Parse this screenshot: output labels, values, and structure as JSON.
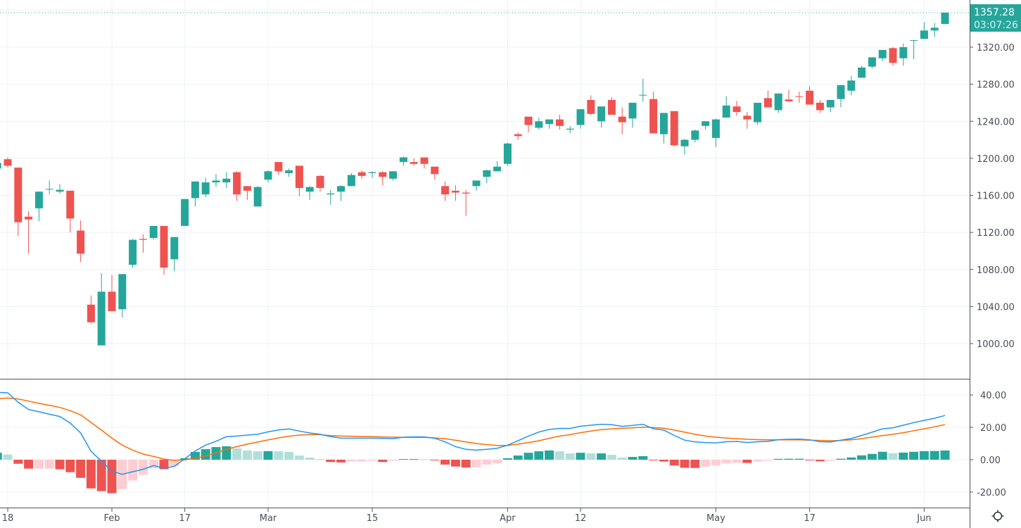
{
  "chart_data": [
    {
      "type": "candlestick",
      "pane": "price",
      "colors": {
        "up": "#26a69a",
        "down": "#ef5350",
        "grid": "#edf1f5",
        "last_price_line": "#26a69a"
      },
      "x_tick_labels": [
        {
          "candle": 1,
          "label": "18"
        },
        {
          "candle": 11,
          "label": "Feb"
        },
        {
          "candle": 18,
          "label": "17"
        },
        {
          "candle": 26,
          "label": "Mar"
        },
        {
          "candle": 36,
          "label": "15"
        },
        {
          "candle": 49,
          "label": "Apr"
        },
        {
          "candle": 56,
          "label": "12"
        },
        {
          "candle": 69,
          "label": "May"
        },
        {
          "candle": 78,
          "label": "17"
        },
        {
          "candle": 89,
          "label": "Jun"
        }
      ],
      "y_ticks": [
        "1000.00",
        "1040.00",
        "1080.00",
        "1120.00",
        "1160.00",
        "1200.00",
        "1240.00",
        "1280.00",
        "1320.00"
      ],
      "ylim": [
        963,
        1372
      ],
      "grid": true,
      "last_price": "1357.28",
      "countdown": "03:07:26",
      "ohlc_fields": [
        "open",
        "high",
        "low",
        "close"
      ],
      "candles": [
        [
          1189,
          1195,
          1188,
          1195
        ],
        [
          1199,
          1201,
          1190,
          1192
        ],
        [
          1190,
          1190,
          1116,
          1131
        ],
        [
          1137,
          1143,
          1097,
          1134
        ],
        [
          1146,
          1164,
          1132,
          1164
        ],
        [
          1166.5,
          1176,
          1161,
          1167
        ],
        [
          1164,
          1172,
          1162,
          1166
        ],
        [
          1165,
          1165,
          1120,
          1135
        ],
        [
          1122,
          1133,
          1088,
          1097
        ],
        [
          1042,
          1052,
          1022,
          1023
        ],
        [
          998,
          1076,
          998,
          1056
        ],
        [
          1056,
          1074,
          1035,
          1035
        ],
        [
          1037,
          1075,
          1028,
          1075
        ],
        [
          1085,
          1113,
          1082,
          1112
        ],
        [
          1113,
          1118,
          1098,
          1112
        ],
        [
          1114,
          1127,
          1112,
          1127
        ],
        [
          1127,
          1127,
          1074,
          1082
        ],
        [
          1091,
          1115,
          1078,
          1115
        ],
        [
          1127,
          1156,
          1127,
          1156
        ],
        [
          1157,
          1175,
          1148,
          1175
        ],
        [
          1161,
          1179,
          1158,
          1174
        ],
        [
          1174,
          1183,
          1169,
          1176
        ],
        [
          1174,
          1185,
          1168,
          1178
        ],
        [
          1185,
          1186,
          1154,
          1161
        ],
        [
          1170,
          1170,
          1155,
          1165
        ],
        [
          1148,
          1170,
          1148,
          1169
        ],
        [
          1177,
          1187,
          1174,
          1186
        ],
        [
          1196,
          1196,
          1182,
          1186
        ],
        [
          1184,
          1189,
          1180,
          1187
        ],
        [
          1192,
          1192,
          1159,
          1168
        ],
        [
          1164,
          1170,
          1155,
          1169
        ],
        [
          1181,
          1182,
          1164,
          1168
        ],
        [
          1161,
          1166,
          1150,
          1162
        ],
        [
          1164,
          1171,
          1154,
          1170
        ],
        [
          1170,
          1184,
          1170,
          1182
        ],
        [
          1185,
          1187,
          1178,
          1181
        ],
        [
          1184,
          1186,
          1179,
          1185
        ],
        [
          1185,
          1186,
          1171,
          1180
        ],
        [
          1178,
          1186,
          1176,
          1186
        ],
        [
          1196,
          1202,
          1192,
          1201
        ],
        [
          1196,
          1200,
          1192,
          1194
        ],
        [
          1201,
          1201,
          1189,
          1194
        ],
        [
          1191,
          1191,
          1177,
          1183
        ],
        [
          1170,
          1175,
          1154,
          1161
        ],
        [
          1165,
          1171,
          1154,
          1163
        ],
        [
          1163,
          1166,
          1138,
          1162
        ],
        [
          1170,
          1176,
          1165,
          1176
        ],
        [
          1180,
          1188,
          1173,
          1187
        ],
        [
          1186,
          1197,
          1186,
          1191
        ],
        [
          1194,
          1217,
          1192,
          1216
        ],
        [
          1226,
          1228,
          1220,
          1224
        ],
        [
          1245,
          1245,
          1228,
          1236
        ],
        [
          1233,
          1244,
          1231,
          1240
        ],
        [
          1237,
          1242,
          1232,
          1242
        ],
        [
          1242,
          1247,
          1231,
          1235
        ],
        [
          1231,
          1235,
          1227,
          1232
        ],
        [
          1236,
          1253,
          1232,
          1253
        ],
        [
          1263,
          1268,
          1247,
          1248
        ],
        [
          1240,
          1256,
          1233,
          1256
        ],
        [
          1263,
          1266,
          1247,
          1247
        ],
        [
          1245,
          1255,
          1226,
          1239
        ],
        [
          1243,
          1260,
          1233,
          1260
        ],
        [
          1268,
          1286,
          1261,
          1268.5
        ],
        [
          1264,
          1272,
          1227,
          1227
        ],
        [
          1226,
          1249,
          1216,
          1249
        ],
        [
          1251,
          1251,
          1213,
          1214
        ],
        [
          1213,
          1221,
          1204,
          1220
        ],
        [
          1220,
          1231,
          1217,
          1230
        ],
        [
          1235,
          1240,
          1231,
          1240
        ],
        [
          1222,
          1243,
          1212,
          1242
        ],
        [
          1244,
          1267,
          1244,
          1257
        ],
        [
          1256,
          1262,
          1246,
          1250
        ],
        [
          1246,
          1250,
          1232,
          1242
        ],
        [
          1239,
          1260,
          1236,
          1260
        ],
        [
          1265,
          1273,
          1255,
          1255
        ],
        [
          1252,
          1270,
          1249,
          1270
        ],
        [
          1263.5,
          1274,
          1261,
          1261.5
        ],
        [
          1267,
          1272,
          1260,
          1266.5
        ],
        [
          1273,
          1278,
          1258,
          1258
        ],
        [
          1260,
          1263,
          1249,
          1252
        ],
        [
          1255,
          1263,
          1250,
          1263
        ],
        [
          1264,
          1279,
          1255,
          1279
        ],
        [
          1273,
          1289,
          1268,
          1284
        ],
        [
          1287,
          1300,
          1287,
          1298
        ],
        [
          1299,
          1309,
          1297,
          1309
        ],
        [
          1308,
          1317,
          1305,
          1317
        ],
        [
          1319,
          1320,
          1300,
          1303
        ],
        [
          1308,
          1324,
          1300,
          1320
        ],
        [
          1327,
          1328,
          1307,
          1327.5
        ],
        [
          1329,
          1347,
          1329,
          1338
        ],
        [
          1338,
          1346,
          1331,
          1341
        ],
        [
          1345,
          1357.5,
          1345,
          1357.28
        ]
      ]
    },
    {
      "type": "line+bar",
      "pane": "macd",
      "y_ticks": [
        "40.00",
        "20.00",
        "0.00",
        "-20.00"
      ],
      "ylim": [
        -30,
        50
      ],
      "grid": true,
      "colors": {
        "macd": "#2196f3",
        "signal": "#ff6d00",
        "hist_up_strong": "#26a69a",
        "hist_up_weak": "#b2dfdb",
        "hist_down_strong": "#ef5350",
        "hist_down_weak": "#ffcdd2"
      },
      "macd": [
        41.6,
        41.3,
        35.5,
        31,
        29.6,
        28.1,
        26.7,
        22.6,
        16.5,
        5.2,
        -0.9,
        -7.1,
        -9,
        -7.4,
        -5.9,
        -3.6,
        -5.2,
        -4.1,
        0.6,
        5.4,
        9,
        11.4,
        14.2,
        14.6,
        15.2,
        15.7,
        17.2,
        18.4,
        19,
        17.7,
        16.5,
        15.7,
        14.3,
        13.3,
        13.3,
        13.3,
        13.3,
        13.2,
        13,
        13.9,
        14.1,
        14.1,
        13.2,
        11,
        8.1,
        6.4,
        5.9,
        6.4,
        7.1,
        9,
        11.7,
        14.6,
        17.1,
        18.7,
        19.3,
        19.3,
        20.7,
        21.3,
        21.9,
        21.6,
        20.6,
        21.2,
        21.9,
        19.1,
        18.3,
        15,
        12.1,
        11,
        10.6,
        10.4,
        11.1,
        11.3,
        10.6,
        11.1,
        11.3,
        12.4,
        12.6,
        12.7,
        12.3,
        11.1,
        11,
        12.1,
        13.1,
        15,
        17,
        19.1,
        19.7,
        21.3,
        22.9,
        24.3,
        25.6,
        27.3
      ],
      "signal": [
        37.7,
        38.1,
        37.5,
        36.2,
        34.8,
        33.6,
        32.3,
        30.3,
        27.7,
        23,
        18.3,
        13.3,
        9,
        5.9,
        3.5,
        2,
        0.4,
        -0.4,
        -0.1,
        0.9,
        2.3,
        4.2,
        6.4,
        8.1,
        9.6,
        10.9,
        12.2,
        13.5,
        14.5,
        15.2,
        15.5,
        15.5,
        14.9,
        14.6,
        14.5,
        14.3,
        14.2,
        14.1,
        13.9,
        13.8,
        13.8,
        13.8,
        13.5,
        13,
        12,
        11,
        10,
        9.3,
        8.8,
        8.8,
        9.6,
        10.6,
        11.7,
        13.2,
        14.6,
        15.5,
        16.7,
        17.7,
        18.6,
        19.1,
        19.4,
        19.7,
        20.1,
        19.9,
        19.4,
        18.3,
        17,
        15.7,
        14.6,
        13.9,
        13.4,
        13,
        12.6,
        12.4,
        12.3,
        12.3,
        12.3,
        12.3,
        12.1,
        11.9,
        11.7,
        11.9,
        12.3,
        13,
        14,
        14.9,
        15.7,
        16.7,
        17.9,
        19.1,
        20.3,
        21.7
      ],
      "histogram": [
        4.3,
        3.2,
        -2.5,
        -5.5,
        -5.5,
        -5.5,
        -5.9,
        -7.7,
        -11.2,
        -17.7,
        -19.4,
        -20.7,
        -18.1,
        -12.9,
        -9.4,
        -5.4,
        -5.9,
        -3.8,
        0.9,
        4.8,
        6.5,
        7.8,
        8.3,
        7,
        5.7,
        5.2,
        5.3,
        5.2,
        4.8,
        2.6,
        1.3,
        0.4,
        -1.4,
        -1.7,
        -1,
        -1,
        -0.6,
        -1.4,
        -0.6,
        0.4,
        0.4,
        0.3,
        -0.4,
        -3,
        -4.2,
        -4.8,
        -4.5,
        -3,
        -2.2,
        0.9,
        2.6,
        4.3,
        5.2,
        5.7,
        5.2,
        3.9,
        4.3,
        3.9,
        3.9,
        3,
        1.3,
        1.7,
        2.2,
        -0.4,
        -1.1,
        -3.6,
        -5,
        -5.1,
        -4.4,
        -3.6,
        -2.3,
        -1.9,
        -2,
        -1.1,
        -0.6,
        0.5,
        0.6,
        0.6,
        -0.1,
        -1,
        -0.6,
        0.6,
        1.4,
        2.7,
        3.6,
        4.9,
        4,
        4.4,
        4.9,
        5.3,
        5.4,
        5.7
      ]
    }
  ],
  "toolbar": {
    "settings_icon": "gear-icon"
  }
}
